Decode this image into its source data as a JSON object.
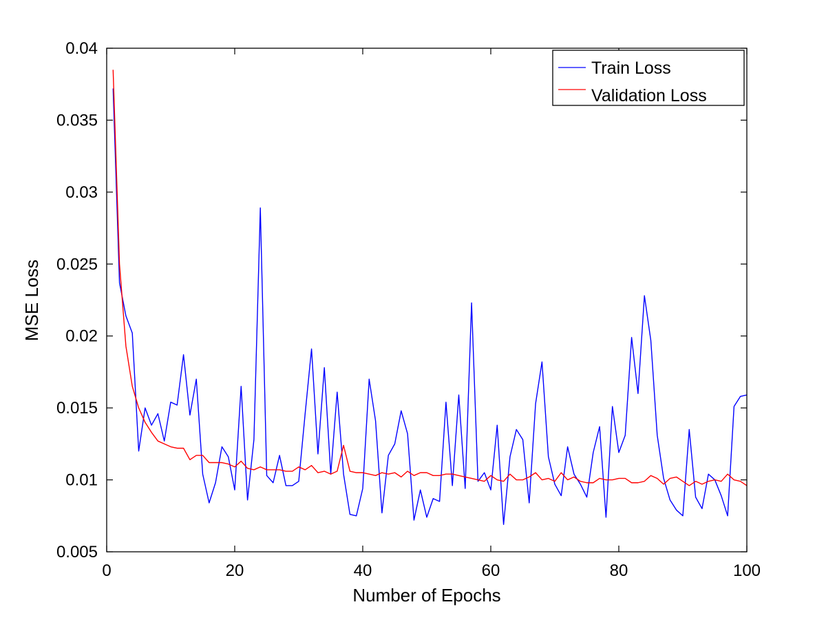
{
  "chart_data": {
    "type": "line",
    "title": "",
    "xlabel": "Number of Epochs",
    "ylabel": "MSE Loss",
    "xlim": [
      0,
      100
    ],
    "ylim": [
      0.005,
      0.04
    ],
    "xticks": [
      0,
      20,
      40,
      60,
      80,
      100
    ],
    "yticks": [
      0.005,
      0.01,
      0.015,
      0.02,
      0.025,
      0.03,
      0.035,
      0.04
    ],
    "xtick_labels": [
      "0",
      "20",
      "40",
      "60",
      "80",
      "100"
    ],
    "ytick_labels": [
      "0.005",
      "0.01",
      "0.015",
      "0.02",
      "0.025",
      "0.03",
      "0.035",
      "0.04"
    ],
    "grid": false,
    "legend": {
      "position": "top-right"
    },
    "x": [
      1,
      2,
      3,
      4,
      5,
      6,
      7,
      8,
      9,
      10,
      11,
      12,
      13,
      14,
      15,
      16,
      17,
      18,
      19,
      20,
      21,
      22,
      23,
      24,
      25,
      26,
      27,
      28,
      29,
      30,
      31,
      32,
      33,
      34,
      35,
      36,
      37,
      38,
      39,
      40,
      41,
      42,
      43,
      44,
      45,
      46,
      47,
      48,
      49,
      50,
      51,
      52,
      53,
      54,
      55,
      56,
      57,
      58,
      59,
      60,
      61,
      62,
      63,
      64,
      65,
      66,
      67,
      68,
      69,
      70,
      71,
      72,
      73,
      74,
      75,
      76,
      77,
      78,
      79,
      80,
      81,
      82,
      83,
      84,
      85,
      86,
      87,
      88,
      89,
      90,
      91,
      92,
      93,
      94,
      95,
      96,
      97,
      98,
      99,
      100
    ],
    "series": [
      {
        "name": "Train Loss",
        "color": "#0000ff",
        "values": [
          0.0372,
          0.0237,
          0.0214,
          0.0202,
          0.012,
          0.015,
          0.0138,
          0.0146,
          0.0127,
          0.0154,
          0.0152,
          0.0187,
          0.0145,
          0.017,
          0.0104,
          0.0084,
          0.0098,
          0.0123,
          0.0116,
          0.0093,
          0.0165,
          0.0086,
          0.0128,
          0.0289,
          0.0103,
          0.0098,
          0.0117,
          0.0096,
          0.0096,
          0.0099,
          0.0146,
          0.0191,
          0.0118,
          0.0178,
          0.0104,
          0.0161,
          0.0104,
          0.0076,
          0.0075,
          0.0094,
          0.017,
          0.0141,
          0.0077,
          0.0117,
          0.0125,
          0.0148,
          0.0132,
          0.0072,
          0.0093,
          0.0074,
          0.0087,
          0.0085,
          0.0154,
          0.0096,
          0.0159,
          0.0094,
          0.0223,
          0.0099,
          0.0105,
          0.0093,
          0.0138,
          0.0069,
          0.0116,
          0.0135,
          0.0128,
          0.0084,
          0.0153,
          0.0182,
          0.0116,
          0.0097,
          0.0089,
          0.0123,
          0.0104,
          0.0097,
          0.0088,
          0.0119,
          0.0137,
          0.0074,
          0.0151,
          0.0119,
          0.0131,
          0.0199,
          0.016,
          0.0228,
          0.0197,
          0.0131,
          0.0101,
          0.0086,
          0.0079,
          0.0075,
          0.0135,
          0.0088,
          0.008,
          0.0104,
          0.01,
          0.0089,
          0.0075,
          0.0151,
          0.0158,
          0.0159
        ]
      },
      {
        "name": "Validation Loss",
        "color": "#ff0000",
        "values": [
          0.0385,
          0.025,
          0.0193,
          0.0165,
          0.015,
          0.014,
          0.0133,
          0.0127,
          0.0125,
          0.0123,
          0.0122,
          0.0122,
          0.0114,
          0.0117,
          0.0117,
          0.0112,
          0.0112,
          0.0112,
          0.0111,
          0.0109,
          0.0113,
          0.0108,
          0.0107,
          0.0109,
          0.0107,
          0.0107,
          0.0107,
          0.0106,
          0.0106,
          0.0109,
          0.0107,
          0.011,
          0.0105,
          0.0106,
          0.0104,
          0.0106,
          0.0124,
          0.0106,
          0.0105,
          0.0105,
          0.0104,
          0.0103,
          0.0105,
          0.0104,
          0.0105,
          0.0102,
          0.0106,
          0.0103,
          0.0105,
          0.0105,
          0.0103,
          0.0103,
          0.0104,
          0.0104,
          0.0103,
          0.0102,
          0.0101,
          0.01,
          0.0099,
          0.0103,
          0.01,
          0.0099,
          0.0104,
          0.01,
          0.01,
          0.0102,
          0.0105,
          0.01,
          0.0101,
          0.0099,
          0.0105,
          0.01,
          0.0102,
          0.0099,
          0.0098,
          0.0098,
          0.0101,
          0.01,
          0.01,
          0.0101,
          0.0101,
          0.0098,
          0.0098,
          0.0099,
          0.0103,
          0.0101,
          0.0097,
          0.0101,
          0.0102,
          0.0099,
          0.0096,
          0.0099,
          0.0097,
          0.0099,
          0.01,
          0.0099,
          0.0104,
          0.01,
          0.0099,
          0.0096
        ]
      }
    ]
  }
}
